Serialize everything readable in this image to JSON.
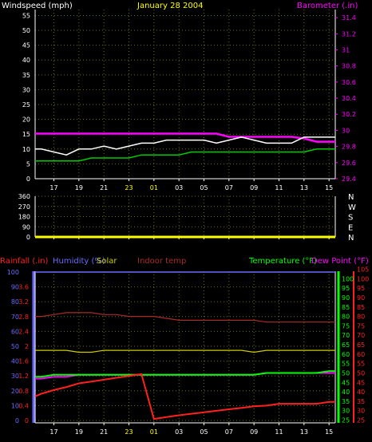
{
  "colors": {
    "background": "#000000",
    "axis": "#ffffff",
    "grid": "#6f6f00",
    "date": "#ffff00",
    "windspeed": "#ffffff",
    "wind_gust": "#00cc00",
    "barometer": "#ff00ff",
    "wind_direction": "#ffff00",
    "rainfall": "#ff2020",
    "humidity": "#6a6aff",
    "solar": "#cccc00",
    "indoor_temp": "#aa2a2a",
    "temperature": "#00ff00",
    "dew_point": "#ff00ff",
    "gray": "#777777"
  },
  "header": {
    "left_label": "Windspeed (mph)",
    "date": "January 28 2004",
    "right_label": "Barometer (.in)"
  },
  "bottom_header": {
    "rainfall": "Rainfall (.in)",
    "humidity": "Humidity (%)",
    "solar": "Solar",
    "indoor_temp": "Indoor temp",
    "temperature": "Temperature (°F)",
    "dew_point": "Dew Point (°F)"
  },
  "x_ticks": [
    "17",
    "19",
    "21",
    "23",
    "01",
    "03",
    "05",
    "07",
    "09",
    "11",
    "13",
    "15"
  ],
  "chart_data": [
    {
      "type": "line",
      "title": "",
      "xlabel": "",
      "ylabel": "Windspeed (mph)",
      "y2label": "Barometer (.in)",
      "ylim": [
        0,
        57
      ],
      "y_ticks": [
        0,
        5,
        10,
        15,
        20,
        25,
        30,
        35,
        40,
        45,
        50,
        55
      ],
      "y2lim": [
        29.4,
        31.5
      ],
      "y2_ticks": [
        "29.4",
        "29.6",
        "29.8",
        "30",
        "30.2",
        "30.4",
        "30.6",
        "30.8",
        "31",
        "31.2",
        "31.4"
      ],
      "x": [
        15.5,
        16,
        17,
        18,
        19,
        20,
        21,
        22,
        23,
        24,
        25,
        26,
        27,
        28,
        29,
        30,
        31,
        32,
        33,
        34,
        35,
        36,
        37,
        38,
        39,
        39.5
      ],
      "series": [
        {
          "name": "Windspeed",
          "axis": "left",
          "values": [
            10,
            10,
            9,
            8,
            10,
            10,
            11,
            10,
            11,
            12,
            12,
            13,
            13,
            13,
            13,
            12,
            13,
            14,
            13,
            12,
            12,
            12,
            14,
            14,
            14,
            14
          ]
        },
        {
          "name": "Gust",
          "axis": "left",
          "values": [
            6,
            6,
            6,
            6,
            6,
            7,
            7,
            7,
            7,
            8,
            8,
            8,
            8,
            9,
            9,
            9,
            9,
            9,
            9,
            9,
            9,
            9,
            9,
            10,
            10,
            10
          ]
        },
        {
          "name": "Barometer",
          "axis": "right",
          "values": [
            29.96,
            29.96,
            29.96,
            29.96,
            29.96,
            29.96,
            29.96,
            29.96,
            29.96,
            29.96,
            29.96,
            29.96,
            29.96,
            29.96,
            29.96,
            29.96,
            29.92,
            29.92,
            29.92,
            29.92,
            29.92,
            29.92,
            29.9,
            29.86,
            29.86,
            29.86
          ]
        }
      ]
    },
    {
      "type": "line",
      "title": "",
      "ylim": [
        0,
        360
      ],
      "y_ticks": [
        0,
        90,
        180,
        270,
        360
      ],
      "right_labels": [
        "N",
        "W",
        "S",
        "E",
        "N"
      ],
      "x": [
        15.5,
        39.5
      ],
      "series": [
        {
          "name": "Wind direction",
          "values": [
            0,
            0
          ]
        }
      ]
    },
    {
      "type": "line",
      "title": "",
      "y_humidity_ticks": [
        0,
        10,
        20,
        30,
        40,
        50,
        60,
        70,
        80,
        90,
        100
      ],
      "y_rain_ticks": [
        "0",
        "0.4",
        "0.8",
        "1.2",
        "1.6",
        "2",
        "2.4",
        "2.8",
        "3.2",
        "3.6"
      ],
      "y_temp_ticks": [
        25,
        30,
        35,
        40,
        45,
        50,
        55,
        60,
        65,
        70,
        75,
        80,
        85,
        90,
        95,
        100
      ],
      "y_temp2_ticks": [
        25,
        30,
        35,
        40,
        45,
        50,
        55,
        60,
        65,
        70,
        75,
        80,
        85,
        90,
        95,
        100,
        105
      ],
      "ylim": [
        23.5,
        104
      ],
      "x": [
        15.5,
        16,
        17,
        18,
        19,
        20,
        21,
        22,
        23,
        24,
        25,
        26,
        27,
        28,
        29,
        30,
        31,
        32,
        33,
        34,
        35,
        36,
        37,
        38,
        39,
        39.5
      ],
      "series": [
        {
          "name": "Humidity",
          "values": [
            100,
            100,
            100,
            100,
            100,
            100,
            100,
            100,
            100,
            100,
            100,
            100,
            100,
            100,
            100,
            100,
            100,
            100,
            100,
            100,
            100,
            100,
            100,
            100,
            100,
            100
          ]
        },
        {
          "name": "Indoor temp",
          "values": [
            80,
            80,
            81,
            82,
            82,
            82,
            81,
            81,
            80,
            80,
            80,
            79,
            78,
            78,
            78,
            78,
            78,
            78,
            78,
            77,
            77,
            77,
            77,
            77,
            77,
            77
          ]
        },
        {
          "name": "Solar",
          "values": [
            62,
            62,
            62,
            62,
            61,
            61,
            62,
            62,
            62,
            62,
            62,
            62,
            62,
            62,
            62,
            62,
            62,
            62,
            61,
            62,
            62,
            62,
            62,
            62,
            62,
            62
          ]
        },
        {
          "name": "Temperature",
          "values": [
            48,
            48,
            49,
            49,
            49,
            49,
            49,
            49,
            49,
            49,
            49,
            49,
            49,
            49,
            49,
            49,
            49,
            49,
            49,
            50,
            50,
            50,
            50,
            50,
            51,
            51
          ]
        },
        {
          "name": "Dew Point",
          "values": [
            47,
            47,
            48,
            48,
            49,
            49,
            49,
            49,
            49,
            49,
            49,
            49,
            49,
            49,
            49,
            49,
            49,
            49,
            49,
            50,
            50,
            50,
            50,
            50,
            50,
            50
          ]
        },
        {
          "name": "Rainfall",
          "values": [
            0.65,
            0.72,
            0.82,
            0.9,
            1.0,
            1.05,
            1.1,
            1.15,
            1.2,
            1.25,
            0.04,
            0.09,
            0.14,
            0.18,
            0.22,
            0.26,
            0.3,
            0.34,
            0.38,
            0.4,
            0.45,
            0.45,
            0.45,
            0.45,
            0.5,
            0.5
          ]
        }
      ]
    }
  ]
}
